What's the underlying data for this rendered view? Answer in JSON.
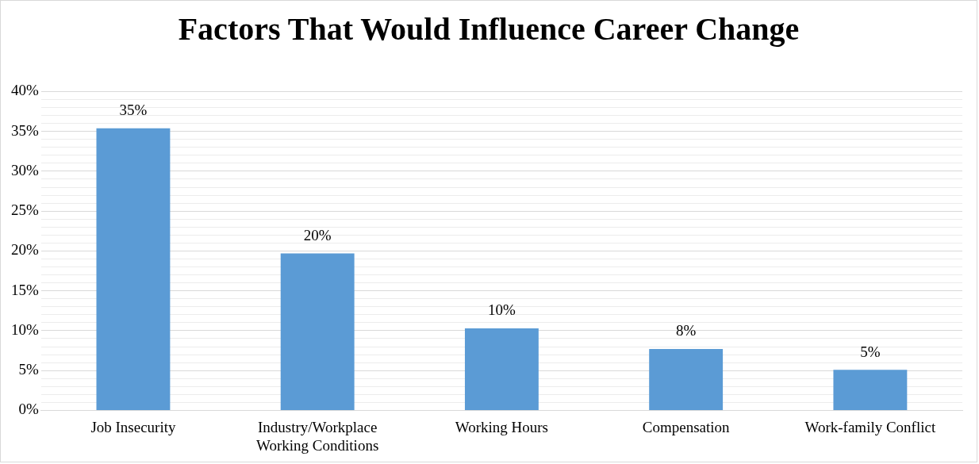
{
  "chart_data": {
    "type": "bar",
    "title": "Factors That Would Influence Career Change",
    "categories": [
      "Job Insecurity",
      "Industry/Workplace Working Conditions",
      "Working Hours",
      "Compensation",
      "Work-family Conflict"
    ],
    "values": [
      35.4,
      19.7,
      10.3,
      7.7,
      5.1
    ],
    "value_labels": [
      "35%",
      "20%",
      "10%",
      "8%",
      "5%"
    ],
    "color": "#5b9bd5",
    "ylim": [
      0,
      40
    ],
    "yticks": [
      {
        "value": 0,
        "label": "0%"
      },
      {
        "value": 1,
        "label": null
      },
      {
        "value": 2,
        "label": null
      },
      {
        "value": 3,
        "label": null
      },
      {
        "value": 4,
        "label": null
      },
      {
        "value": 5,
        "label": "5%"
      },
      {
        "value": 6,
        "label": null
      },
      {
        "value": 7,
        "label": null
      },
      {
        "value": 8,
        "label": null
      },
      {
        "value": 9,
        "label": null
      },
      {
        "value": 10,
        "label": "10%"
      },
      {
        "value": 11,
        "label": null
      },
      {
        "value": 12,
        "label": null
      },
      {
        "value": 13,
        "label": null
      },
      {
        "value": 14,
        "label": null
      },
      {
        "value": 15,
        "label": "15%"
      },
      {
        "value": 16,
        "label": null
      },
      {
        "value": 17,
        "label": null
      },
      {
        "value": 18,
        "label": null
      },
      {
        "value": 19,
        "label": null
      },
      {
        "value": 20,
        "label": "20%"
      },
      {
        "value": 21,
        "label": null
      },
      {
        "value": 22,
        "label": null
      },
      {
        "value": 23,
        "label": null
      },
      {
        "value": 24,
        "label": null
      },
      {
        "value": 25,
        "label": "25%"
      },
      {
        "value": 26,
        "label": null
      },
      {
        "value": 27,
        "label": null
      },
      {
        "value": 28,
        "label": null
      },
      {
        "value": 29,
        "label": null
      },
      {
        "value": 30,
        "label": "30%"
      },
      {
        "value": 31,
        "label": null
      },
      {
        "value": 32,
        "label": null
      },
      {
        "value": 33,
        "label": null
      },
      {
        "value": 34,
        "label": null
      },
      {
        "value": 35,
        "label": "35%"
      },
      {
        "value": 36,
        "label": null
      },
      {
        "value": 37,
        "label": null
      },
      {
        "value": 38,
        "label": null
      },
      {
        "value": 39,
        "label": null
      },
      {
        "value": 40,
        "label": "40%"
      }
    ],
    "grid": "y"
  }
}
